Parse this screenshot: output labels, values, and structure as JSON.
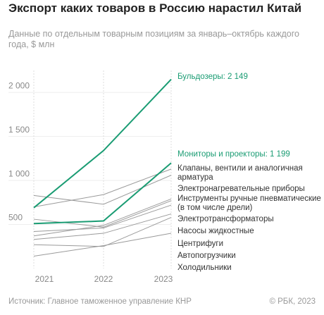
{
  "chart_data": {
    "type": "line",
    "title": "Экспорт каких товаров в Россию нарастил Китай",
    "subtitle": "Данные по отдельным товарным позициям за январь–октябрь каждого года, $ млн",
    "source": "Источник: Главное таможенное управление КНР",
    "credit": "© РБК, 2023",
    "categories": [
      "2021",
      "2022",
      "2023"
    ],
    "ylim": [
      0,
      2250
    ],
    "yticks": [
      {
        "value": 500,
        "label": "500"
      },
      {
        "value": 1000,
        "label": "1 000"
      },
      {
        "value": 1500,
        "label": "1 500"
      },
      {
        "value": 2000,
        "label": "2 000"
      }
    ],
    "series": [
      {
        "name": "Клапаны, вентили и аналогичная арматура",
        "color": "#9a9a9a",
        "values": [
          700,
          840,
          1130
        ]
      },
      {
        "name": "Электронагревательные приборы",
        "color": "#9a9a9a",
        "values": [
          830,
          730,
          1060
        ]
      },
      {
        "name": "Инструменты ручные пневматические (в том числе дрели)",
        "color": "#9a9a9a",
        "values": [
          370,
          490,
          790
        ]
      },
      {
        "name": "Электротрансформаторы",
        "color": "#9a9a9a",
        "values": [
          560,
          470,
          770
        ]
      },
      {
        "name": "Насосы жидкостные",
        "color": "#9a9a9a",
        "values": [
          420,
          460,
          720
        ]
      },
      {
        "name": "Центрифуги",
        "color": "#9a9a9a",
        "values": [
          330,
          400,
          620
        ]
      },
      {
        "name": "Автопогрузчики",
        "color": "#9a9a9a",
        "values": [
          270,
          250,
          580
        ]
      },
      {
        "name": "Холодильники",
        "color": "#9a9a9a",
        "values": [
          140,
          260,
          400
        ]
      },
      {
        "name": "Бульдозеры",
        "color": "#1a9c73",
        "values": [
          690,
          1340,
          2149
        ],
        "value_labels": [
          null,
          null,
          "Бульдозеры: 2 149"
        ]
      },
      {
        "name": "Мониторы и проекторы",
        "color": "#1a9c73",
        "values": [
          510,
          540,
          1199
        ],
        "value_labels": [
          null,
          null,
          "Мониторы и проекторы: 1 199"
        ]
      }
    ]
  }
}
